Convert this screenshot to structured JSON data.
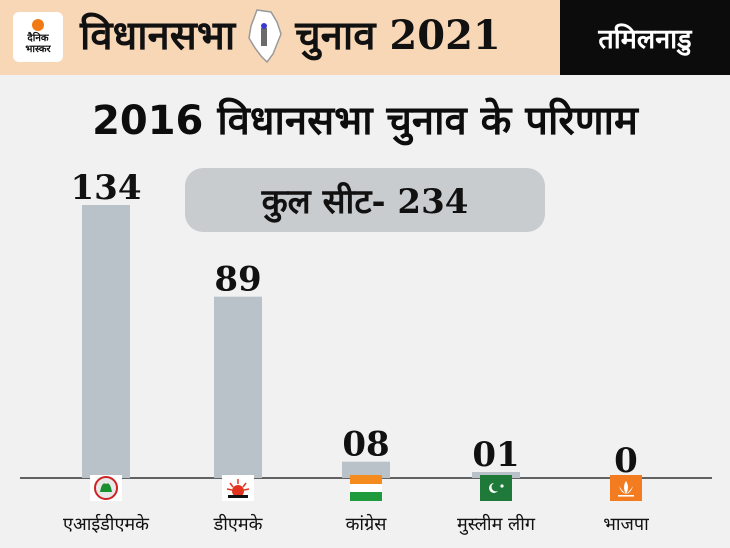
{
  "header": {
    "logo_line1": "दैनिक",
    "logo_line2": "भास्कर",
    "title_part1": "विधानसभा",
    "title_part2": "चुनाव 2021",
    "state": "तमिलनाडु",
    "state_map_icon": "tamil-nadu-map-icon"
  },
  "subtitle": "2016 विधानसभा चुनाव के परिणाम",
  "total_seats_label": "कुल सीट- 234",
  "colors": {
    "banner": "#f8d7b6",
    "bar": "#b8c2c8",
    "logo_accent": "#f27a14"
  },
  "chart_data": {
    "type": "bar",
    "categories": [
      "एआईडीएमके",
      "डीएमके",
      "कांग्रेस",
      "मुस्लीम लीग",
      "भाजपा"
    ],
    "values": [
      134,
      89,
      8,
      1,
      0
    ],
    "value_labels": [
      "134",
      "89",
      "08",
      "01",
      "0"
    ],
    "party_symbols": [
      "aiadmk-two-leaves-icon",
      "dmk-rising-sun-icon",
      "congress-hand-icon",
      "muslim-league-flag-icon",
      "bjp-lotus-icon"
    ],
    "title": "2016 विधानसभा चुनाव के परिणाम",
    "xlabel": "",
    "ylabel": "",
    "ylim": [
      0,
      134
    ],
    "grid": false,
    "legend": "none"
  }
}
